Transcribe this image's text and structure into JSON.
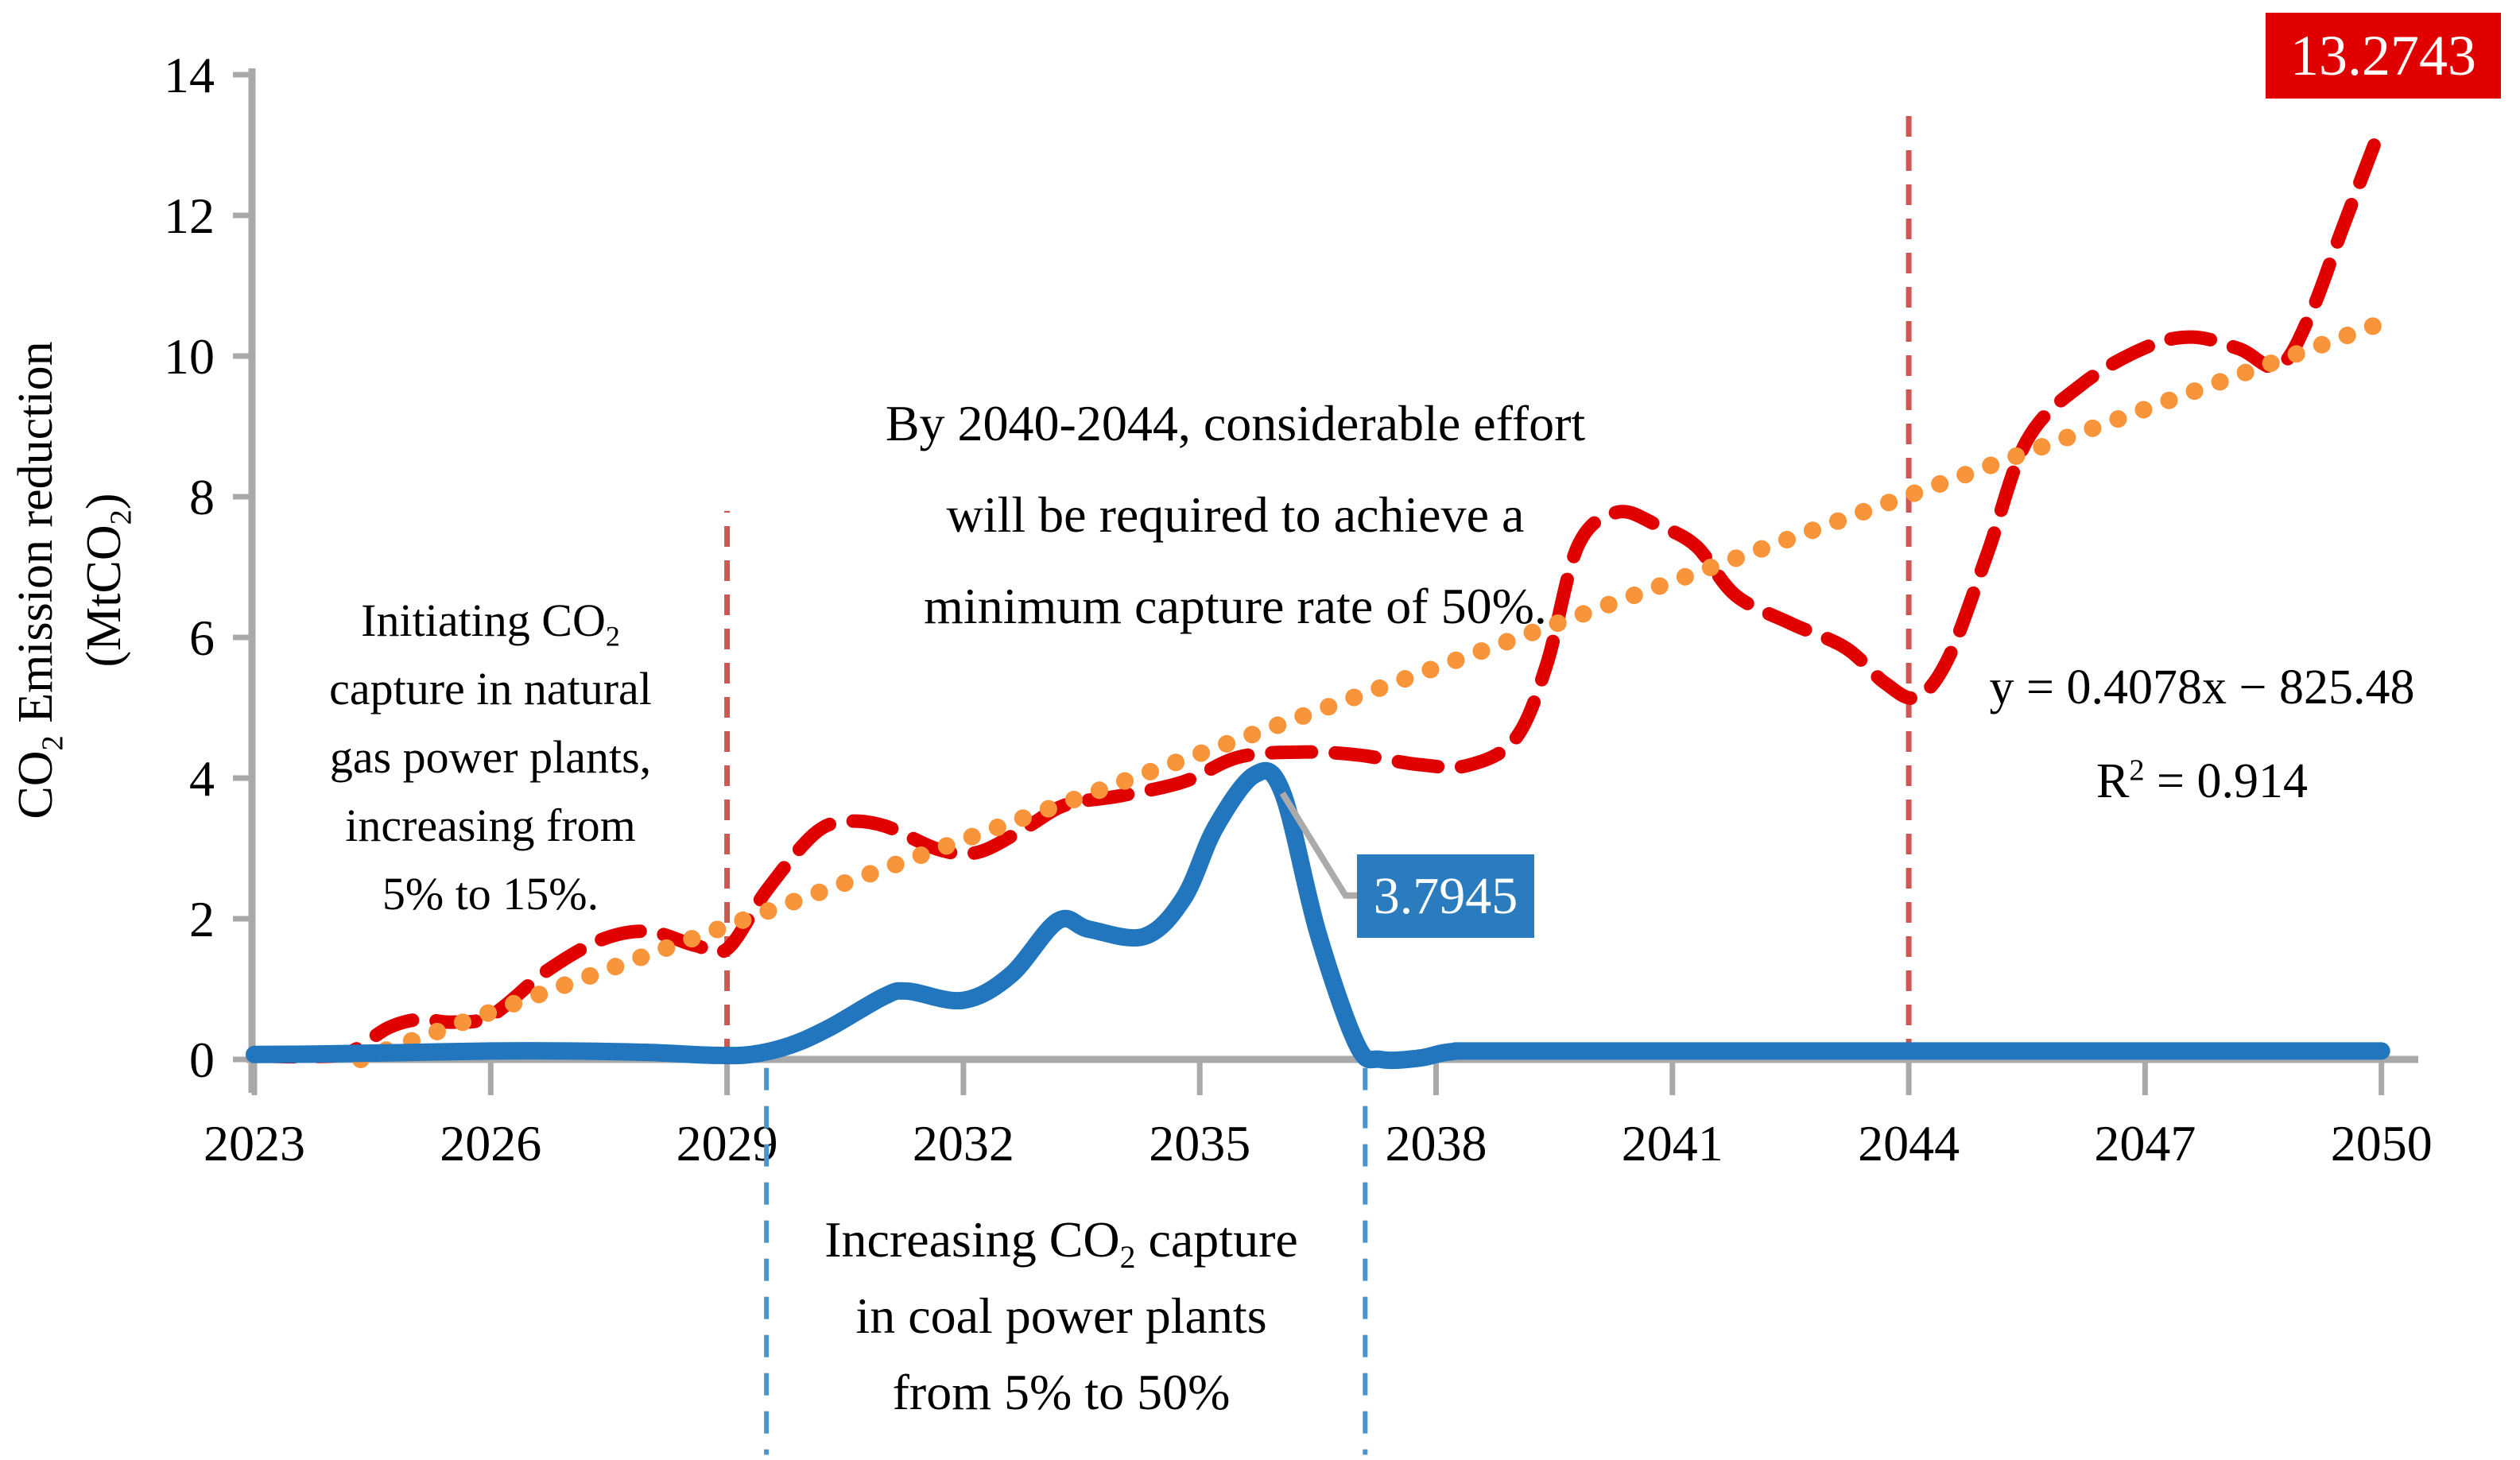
{
  "page": {
    "background": "#ffffff"
  },
  "chart_data": {
    "type": "line",
    "title": "",
    "xlabel": "",
    "ylabel": "CO~2~ Emission reduction\n(MtCO~2~)",
    "xlim": [
      2023,
      2050
    ],
    "ylim": [
      0,
      14
    ],
    "grid": false,
    "legend": "none",
    "x_ticks": [
      2023,
      2026,
      2029,
      2032,
      2035,
      2038,
      2041,
      2044,
      2047,
      2050
    ],
    "y_ticks": [
      0,
      2,
      4,
      6,
      8,
      10,
      12,
      14
    ],
    "colors": {
      "gas_series": "#E10000",
      "coal_series": "#2176BE",
      "trendline": "#F8953B",
      "red_marker_line": "#CD5752",
      "blue_marker_line": "#4795CC",
      "axis": "#A9A9A9",
      "leader": "#ABABAB",
      "text": "#000000"
    },
    "series": [
      {
        "name": "natural-gas-co2-reduction",
        "style": "dashed",
        "color": "#E10000",
        "width": 17,
        "points": [
          [
            2023,
            0.05
          ],
          [
            2023.7,
            0.04
          ],
          [
            2024.2,
            0.1
          ],
          [
            2024.7,
            0.45
          ],
          [
            2025.1,
            0.57
          ],
          [
            2025.5,
            0.53
          ],
          [
            2026,
            0.62
          ],
          [
            2026.7,
            1.25
          ],
          [
            2027.4,
            1.7
          ],
          [
            2028,
            1.82
          ],
          [
            2028.6,
            1.62
          ],
          [
            2029,
            1.57
          ],
          [
            2029.5,
            2.4
          ],
          [
            2030.1,
            3.2
          ],
          [
            2030.5,
            3.38
          ],
          [
            2031,
            3.32
          ],
          [
            2031.7,
            2.98
          ],
          [
            2032.2,
            2.95
          ],
          [
            2032.8,
            3.3
          ],
          [
            2033.3,
            3.62
          ],
          [
            2034,
            3.75
          ],
          [
            2034.8,
            3.95
          ],
          [
            2035.5,
            4.3
          ],
          [
            2036.3,
            4.37
          ],
          [
            2037,
            4.33
          ],
          [
            2037.8,
            4.19
          ],
          [
            2038.4,
            4.18
          ],
          [
            2039,
            4.55
          ],
          [
            2039.4,
            5.6
          ],
          [
            2039.8,
            7.3
          ],
          [
            2040.3,
            7.78
          ],
          [
            2040.8,
            7.6
          ],
          [
            2041.3,
            7.3
          ],
          [
            2041.8,
            6.6
          ],
          [
            2042.5,
            6.2
          ],
          [
            2043.2,
            5.85
          ],
          [
            2043.7,
            5.35
          ],
          [
            2044.1,
            5.15
          ],
          [
            2044.5,
            5.7
          ],
          [
            2045,
            7.2
          ],
          [
            2045.5,
            8.8
          ],
          [
            2046.2,
            9.6
          ],
          [
            2047,
            10.12
          ],
          [
            2047.6,
            10.27
          ],
          [
            2048.2,
            10.1
          ],
          [
            2048.7,
            9.85
          ],
          [
            2049.1,
            10.6
          ],
          [
            2049.5,
            11.8
          ],
          [
            2050,
            13.2743
          ]
        ]
      },
      {
        "name": "linear-trendline",
        "style": "dotted",
        "color": "#F8953B",
        "width": 22,
        "points": [
          [
            2024.35,
            0
          ],
          [
            2050,
            10.47
          ]
        ]
      },
      {
        "name": "coal-co2-reduction",
        "style": "solid",
        "color": "#2176BE",
        "width": 22,
        "points": [
          [
            2023,
            0.07
          ],
          [
            2024,
            0.08
          ],
          [
            2025,
            0.1
          ],
          [
            2026,
            0.12
          ],
          [
            2027,
            0.12
          ],
          [
            2028,
            0.1
          ],
          [
            2028.8,
            0.06
          ],
          [
            2029.3,
            0.07
          ],
          [
            2029.8,
            0.2
          ],
          [
            2030.3,
            0.45
          ],
          [
            2031,
            0.9
          ],
          [
            2031.3,
            0.97
          ],
          [
            2032,
            0.84
          ],
          [
            2032.6,
            1.2
          ],
          [
            2033.2,
            1.97
          ],
          [
            2033.6,
            1.85
          ],
          [
            2034.3,
            1.75
          ],
          [
            2034.8,
            2.3
          ],
          [
            2035.2,
            3.3
          ],
          [
            2035.7,
            4.05
          ],
          [
            2036.05,
            3.7945
          ],
          [
            2036.5,
            1.8
          ],
          [
            2037,
            0.2
          ],
          [
            2037.3,
            0.0
          ],
          [
            2037.8,
            0.02
          ],
          [
            2038.2,
            0.11
          ],
          [
            2039,
            0.12
          ],
          [
            2045,
            0.12
          ],
          [
            2050,
            0.12
          ]
        ]
      }
    ],
    "vlines": [
      {
        "name": "gas-phase-marker-2029",
        "x": 2029,
        "from": 0,
        "to": 7.8,
        "color": "#CD5752",
        "width": 7,
        "dash": "26 17"
      },
      {
        "name": "effort-marker-2044",
        "x": 2044,
        "from": 0,
        "to": 13.45,
        "color": "#CD5752",
        "width": 7,
        "dash": "26 17"
      },
      {
        "name": "coal-phase-start-marker",
        "x": 2029.5,
        "from": -0.12,
        "to": -5.62,
        "color": "#4795CC",
        "width": 6,
        "dash": "28 20"
      },
      {
        "name": "coal-phase-end-marker",
        "x": 2037.1,
        "from": -0.12,
        "to": -5.62,
        "color": "#4795CC",
        "width": 6,
        "dash": "28 20"
      }
    ],
    "leader": {
      "color": "#ABABAB",
      "width": 8,
      "points": [
        [
          2036.05,
          3.785
        ],
        [
          2036.85,
          2.33
        ],
        [
          2037.02,
          2.33
        ]
      ]
    },
    "callouts": {
      "red_final_value": "13.2743",
      "blue_peak_value": "3.7945"
    },
    "annotations": {
      "gas_note": "Initiating CO~2~\ncapture in natural\ngas power plants,\nincreasing from\n5% to 15%.",
      "effort_note": "By 2040-2044, considerable effort\nwill be required to achieve a\nminimum capture rate of 50%.",
      "coal_note": "Increasing CO~2~ capture\nin coal power plants\nfrom 5% to 50%",
      "equation": "y = 0.4078x − 825.48\nR^2^ = 0.914"
    }
  }
}
